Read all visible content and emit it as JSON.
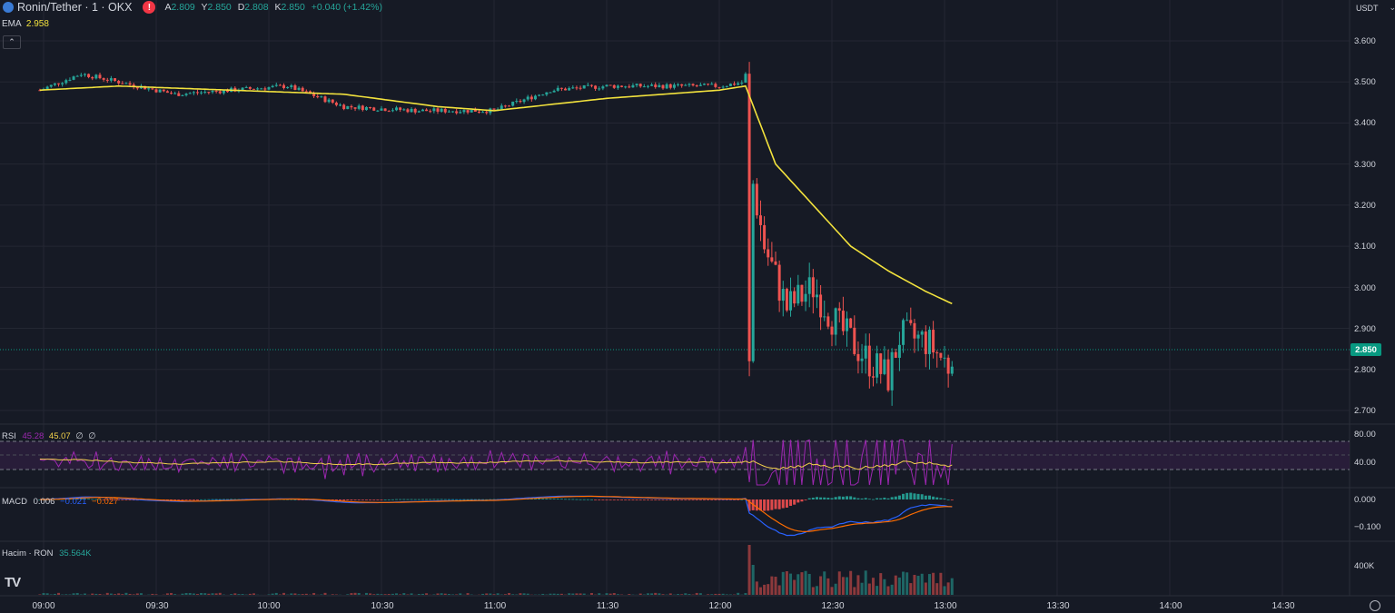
{
  "header": {
    "symbol": "Ronin/Tether · 1 · OKX",
    "warning": "!",
    "ohlc": [
      {
        "k": "A",
        "v": "2.809"
      },
      {
        "k": "Y",
        "v": "2.850"
      },
      {
        "k": "D",
        "v": "2.808"
      },
      {
        "k": "K",
        "v": "2.850"
      }
    ],
    "change": "+0.040 (+1.42%)",
    "collapse_icon": "chevron-up-icon",
    "currency": "USDT"
  },
  "ema": {
    "label": "EMA",
    "value": "2.958"
  },
  "rsi": {
    "label": "RSI",
    "v1": "45.28",
    "v2": "45.07",
    "v3": "∅",
    "v4": "∅"
  },
  "macd": {
    "label": "MACD",
    "v1": "0.006",
    "v2": "−0.021",
    "v3": "−0.027"
  },
  "volume": {
    "label": "Hacim · RON",
    "value": "35.564K"
  },
  "last_price": "2.850",
  "price_axis": [
    "3.600",
    "3.500",
    "3.400",
    "3.300",
    "3.200",
    "3.100",
    "3.000",
    "2.900",
    "2.800",
    "2.700"
  ],
  "rsi_axis": [
    "80.00",
    "40.00"
  ],
  "macd_axis": [
    "0.000",
    "−0.100"
  ],
  "vol_axis": [
    "400K"
  ],
  "time_axis": [
    "09:00",
    "09:30",
    "10:00",
    "10:30",
    "11:00",
    "11:30",
    "12:00",
    "12:30",
    "13:00",
    "13:30",
    "14:00",
    "14:30"
  ],
  "logo": "TV",
  "colors": {
    "up": "#26a69a",
    "down": "#ef5350",
    "ema": "#f2e23d",
    "rsi": "#9c27b0",
    "rsi_ma": "#f2d04a",
    "macd": "#2962ff",
    "signal": "#ff6d00",
    "bg": "#161a25"
  },
  "chart_data": {
    "type": "candlestick",
    "price_ylim": [
      2.7,
      3.6
    ],
    "time_range": [
      "09:00",
      "14:30"
    ],
    "close_path": [
      {
        "t": "08:59",
        "c": 3.48
      },
      {
        "t": "09:10",
        "c": 3.52
      },
      {
        "t": "09:20",
        "c": 3.5
      },
      {
        "t": "09:35",
        "c": 3.47
      },
      {
        "t": "09:50",
        "c": 3.48
      },
      {
        "t": "10:05",
        "c": 3.49
      },
      {
        "t": "10:20",
        "c": 3.44
      },
      {
        "t": "10:40",
        "c": 3.43
      },
      {
        "t": "11:00",
        "c": 3.43
      },
      {
        "t": "11:15",
        "c": 3.48
      },
      {
        "t": "11:30",
        "c": 3.49
      },
      {
        "t": "12:00",
        "c": 3.49
      },
      {
        "t": "12:07",
        "c": 3.5
      },
      {
        "t": "12:08",
        "c": 2.83
      },
      {
        "t": "12:09",
        "c": 3.25
      },
      {
        "t": "12:12",
        "c": 3.1
      },
      {
        "t": "12:18",
        "c": 2.95
      },
      {
        "t": "12:25",
        "c": 3.0
      },
      {
        "t": "12:32",
        "c": 2.9
      },
      {
        "t": "12:40",
        "c": 2.82
      },
      {
        "t": "12:45",
        "c": 2.78
      },
      {
        "t": "12:48",
        "c": 2.88
      },
      {
        "t": "12:55",
        "c": 2.87
      },
      {
        "t": "13:01",
        "c": 2.81
      },
      {
        "t": "13:02",
        "c": 2.85
      }
    ],
    "ema_path": [
      {
        "t": "08:59",
        "v": 3.48
      },
      {
        "t": "09:20",
        "v": 3.49
      },
      {
        "t": "09:50",
        "v": 3.48
      },
      {
        "t": "10:20",
        "v": 3.47
      },
      {
        "t": "10:45",
        "v": 3.44
      },
      {
        "t": "11:00",
        "v": 3.43
      },
      {
        "t": "11:30",
        "v": 3.46
      },
      {
        "t": "12:00",
        "v": 3.48
      },
      {
        "t": "12:07",
        "v": 3.49
      },
      {
        "t": "12:15",
        "v": 3.3
      },
      {
        "t": "12:25",
        "v": 3.2
      },
      {
        "t": "12:35",
        "v": 3.1
      },
      {
        "t": "12:45",
        "v": 3.04
      },
      {
        "t": "12:55",
        "v": 2.99
      },
      {
        "t": "13:02",
        "v": 2.96
      }
    ]
  }
}
